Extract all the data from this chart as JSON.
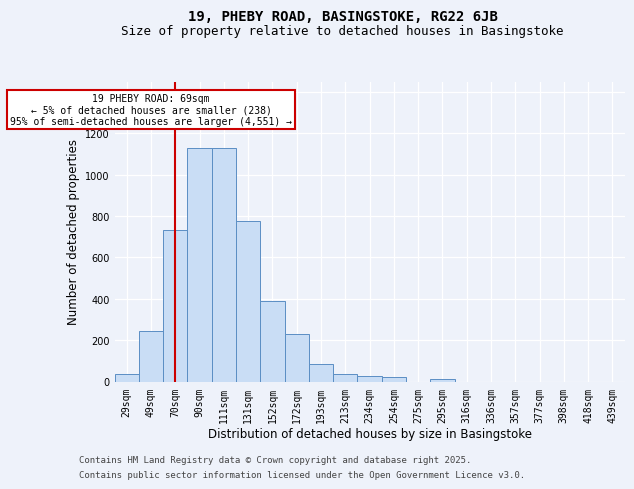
{
  "title1": "19, PHEBY ROAD, BASINGSTOKE, RG22 6JB",
  "title2": "Size of property relative to detached houses in Basingstoke",
  "xlabel": "Distribution of detached houses by size in Basingstoke",
  "ylabel": "Number of detached properties",
  "categories": [
    "29sqm",
    "49sqm",
    "70sqm",
    "90sqm",
    "111sqm",
    "131sqm",
    "152sqm",
    "172sqm",
    "193sqm",
    "213sqm",
    "234sqm",
    "254sqm",
    "275sqm",
    "295sqm",
    "316sqm",
    "336sqm",
    "357sqm",
    "377sqm",
    "398sqm",
    "418sqm",
    "439sqm"
  ],
  "values": [
    35,
    245,
    730,
    1130,
    1130,
    775,
    390,
    230,
    85,
    35,
    25,
    20,
    0,
    10,
    0,
    0,
    0,
    0,
    0,
    0,
    0
  ],
  "bar_color": "#c9ddf5",
  "bar_edge_color": "#5b8ec4",
  "red_line_index": 2,
  "annotation_text": "19 PHEBY ROAD: 69sqm\n← 5% of detached houses are smaller (238)\n95% of semi-detached houses are larger (4,551) →",
  "annotation_box_color": "#ffffff",
  "annotation_border_color": "#cc0000",
  "footnote1": "Contains HM Land Registry data © Crown copyright and database right 2025.",
  "footnote2": "Contains public sector information licensed under the Open Government Licence v3.0.",
  "ylim": [
    0,
    1450
  ],
  "yticks": [
    0,
    200,
    400,
    600,
    800,
    1000,
    1200,
    1400
  ],
  "background_color": "#eef2fa",
  "grid_color": "#ffffff",
  "title_fontsize": 10,
  "subtitle_fontsize": 9,
  "axis_label_fontsize": 8.5,
  "tick_fontsize": 7,
  "footnote_fontsize": 6.5
}
